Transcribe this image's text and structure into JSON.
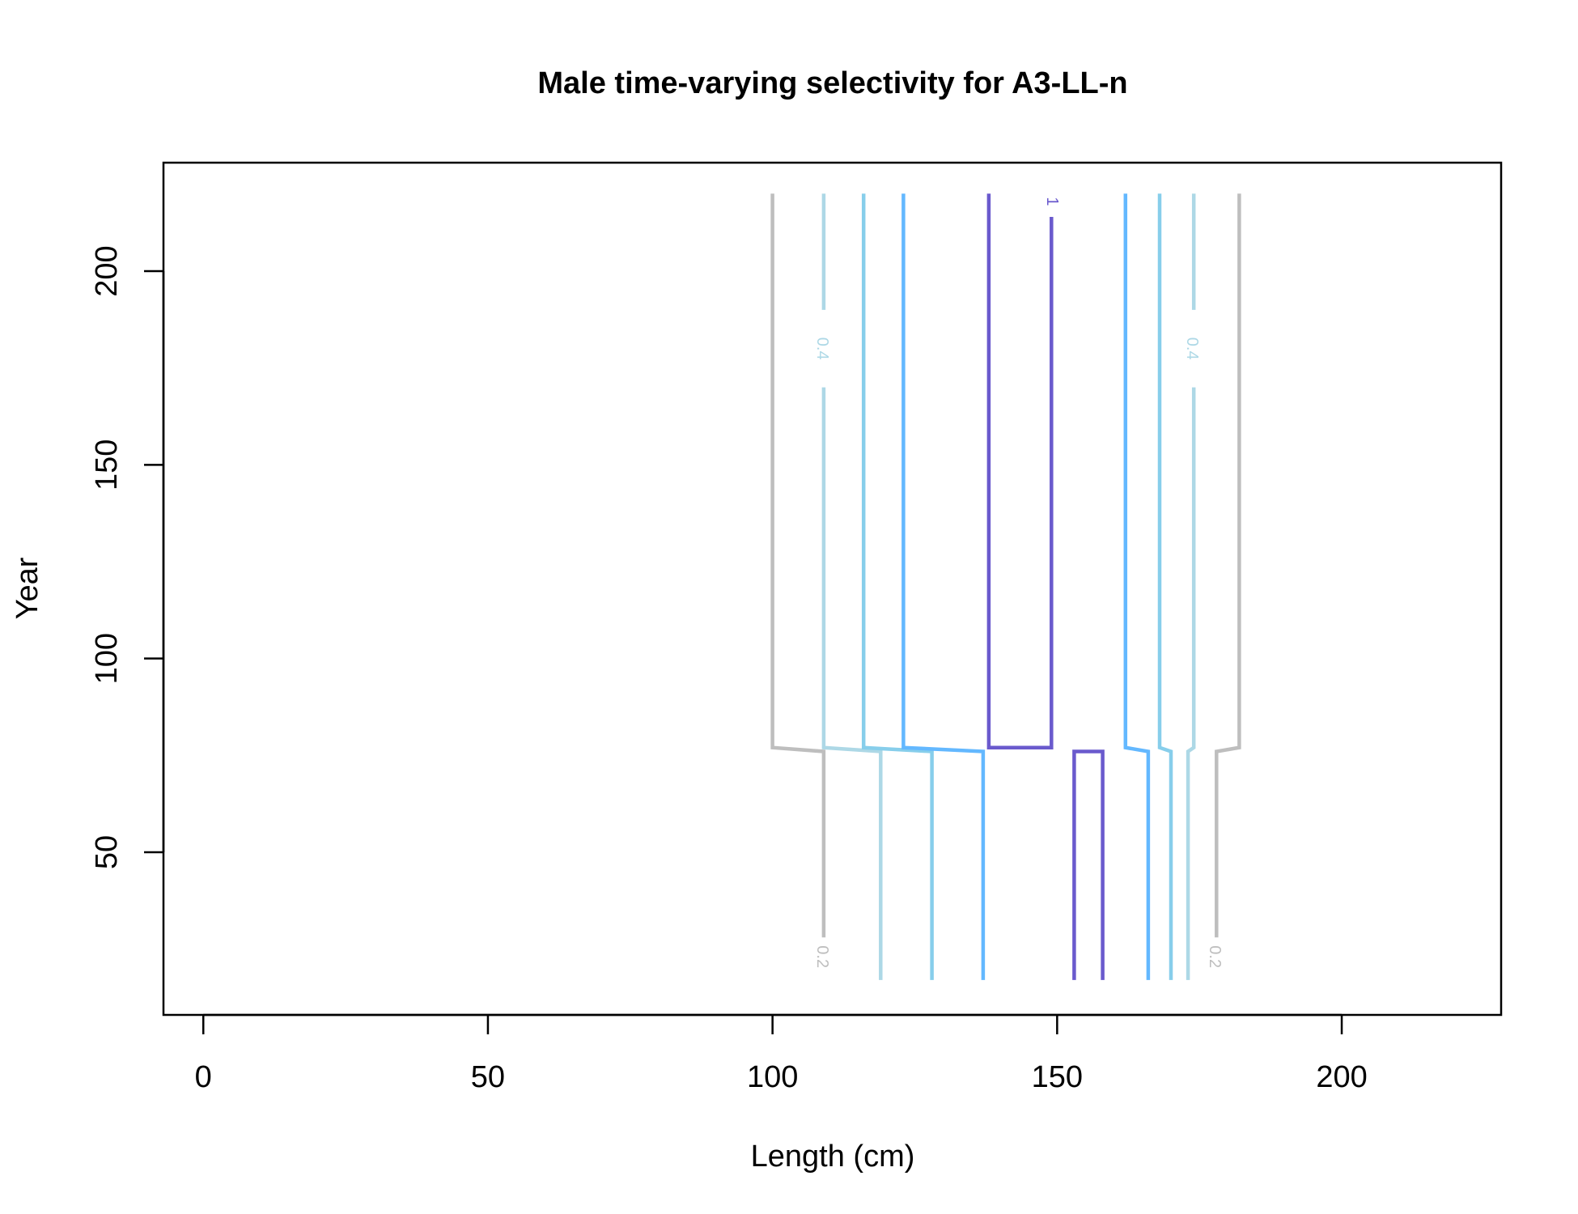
{
  "chart_data": {
    "type": "contour",
    "title": "Male time-varying selectivity for A3-LL-n",
    "xlabel": "Length (cm)",
    "ylabel": "Year",
    "xlim": [
      -7,
      228
    ],
    "ylim": [
      8,
      228
    ],
    "xticks": [
      0,
      50,
      100,
      150,
      200
    ],
    "yticks": [
      50,
      100,
      150,
      200
    ],
    "grid": false,
    "levels": [
      {
        "level": "0.2",
        "label": "0.2",
        "color": "#bebebe",
        "lines": [
          {
            "points": [
              [
                100,
                220
              ],
              [
                100,
                77
              ],
              [
                109,
                76
              ],
              [
                109,
                28
              ]
            ],
            "label_at": [
              108.6,
              23
            ]
          },
          {
            "points": [
              [
                182,
                220
              ],
              [
                182,
                77
              ],
              [
                178,
                76
              ],
              [
                178,
                28
              ]
            ],
            "label_at": [
              177.6,
              23
            ]
          }
        ]
      },
      {
        "level": "0.4",
        "label": "0.4",
        "color": "#add8e6",
        "lines": [
          {
            "points": [
              [
                109,
                220
              ],
              [
                109,
                190
              ]
            ],
            "label_at": [
              108.6,
              180
            ]
          },
          {
            "points": [
              [
                109,
                170
              ],
              [
                109,
                77
              ],
              [
                119,
                76
              ],
              [
                119,
                17
              ]
            ],
            "label_at": null
          },
          {
            "points": [
              [
                174,
                220
              ],
              [
                174,
                190
              ]
            ],
            "label_at": [
              173.6,
              180
            ]
          },
          {
            "points": [
              [
                174,
                170
              ],
              [
                174,
                77
              ],
              [
                173,
                76
              ],
              [
                173,
                17
              ]
            ],
            "label_at": null
          }
        ]
      },
      {
        "level": "0.6",
        "label": "",
        "color": "#87ceeb",
        "lines": [
          {
            "points": [
              [
                116,
                220
              ],
              [
                116,
                77
              ],
              [
                128,
                76
              ],
              [
                128,
                17
              ]
            ],
            "label_at": null
          },
          {
            "points": [
              [
                168,
                220
              ],
              [
                168,
                77
              ],
              [
                170,
                76
              ],
              [
                170,
                17
              ]
            ],
            "label_at": null
          }
        ]
      },
      {
        "level": "0.8",
        "label": "",
        "color": "#63b8ff",
        "lines": [
          {
            "points": [
              [
                123,
                220
              ],
              [
                123,
                77
              ],
              [
                137,
                76
              ],
              [
                137,
                17
              ]
            ],
            "label_at": null
          },
          {
            "points": [
              [
                162,
                220
              ],
              [
                162,
                77
              ],
              [
                166,
                76
              ],
              [
                166,
                17
              ]
            ],
            "label_at": null
          }
        ]
      },
      {
        "level": "1",
        "label": "1",
        "color": "#6a5acd",
        "lines": [
          {
            "points": [
              [
                138,
                220
              ],
              [
                138,
                77
              ],
              [
                149,
                77
              ],
              [
                149,
                214
              ]
            ],
            "label_at": [
              149,
              218
            ]
          },
          {
            "points": [
              [
                153,
                17
              ],
              [
                153,
                76
              ],
              [
                158,
                76
              ],
              [
                158,
                17
              ]
            ],
            "label_at": null
          }
        ]
      }
    ]
  }
}
